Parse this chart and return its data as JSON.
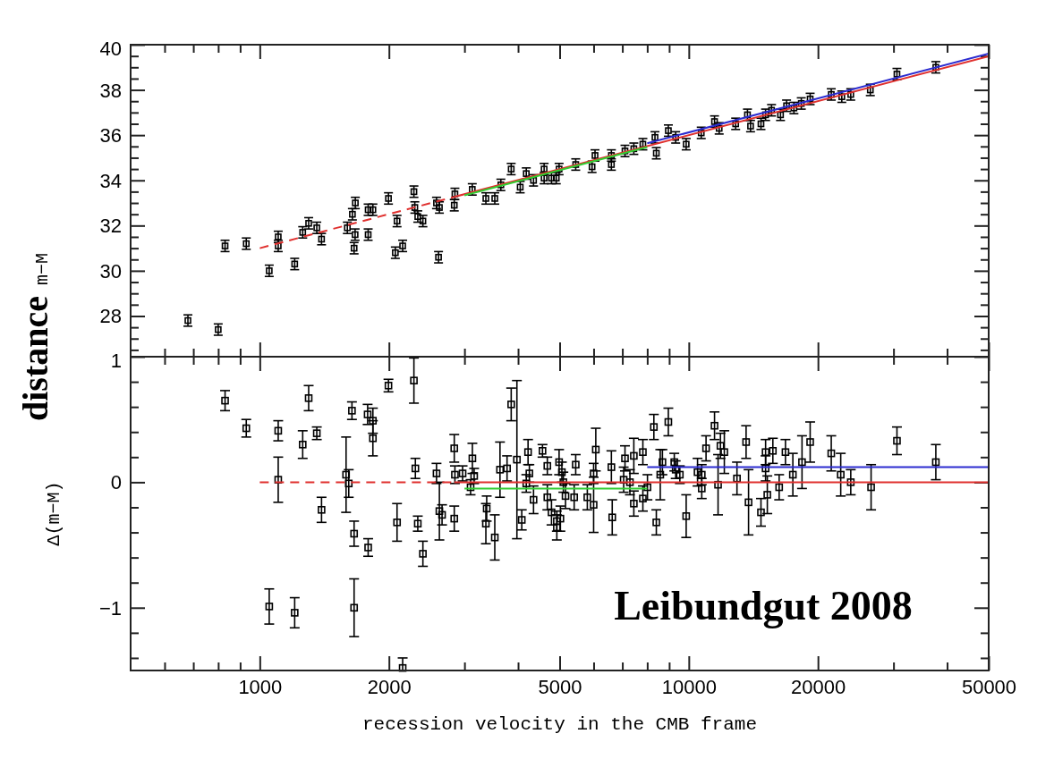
{
  "chart_data": [
    {
      "type": "scatter",
      "ylabel": "distance m−M",
      "xlim": [
        500,
        50000
      ],
      "ylim": [
        26.2,
        40
      ],
      "log": "x",
      "tick_labels": "y",
      "xticks": [
        {
          "value": 600,
          "label": null
        },
        {
          "value": 700,
          "label": null
        },
        {
          "value": 800,
          "label": null
        },
        {
          "value": 900,
          "label": null
        },
        1000,
        2000,
        {
          "value": 3000,
          "label": null
        },
        {
          "value": 4000,
          "label": null
        },
        5000,
        {
          "value": 6000,
          "label": null
        },
        {
          "value": 7000,
          "label": null
        },
        {
          "value": 8000,
          "label": null
        },
        {
          "value": 9000,
          "label": null
        },
        10000,
        20000,
        {
          "value": 30000,
          "label": null
        },
        {
          "value": 40000,
          "label": null
        },
        50000
      ],
      "yticks": [
        {
          "value": 26.5,
          "label": null
        },
        {
          "value": 27,
          "label": null
        },
        {
          "value": 27.5,
          "label": null
        },
        28,
        {
          "value": 28.5,
          "label": null
        },
        {
          "value": 29,
          "label": null
        },
        {
          "value": 29.5,
          "label": null
        },
        30,
        {
          "value": 30.5,
          "label": null
        },
        {
          "value": 31,
          "label": null
        },
        {
          "value": 31.5,
          "label": null
        },
        32,
        {
          "value": 32.5,
          "label": null
        },
        {
          "value": 33,
          "label": null
        },
        {
          "value": 33.5,
          "label": null
        },
        34,
        {
          "value": 34.5,
          "label": null
        },
        {
          "value": 35,
          "label": null
        },
        {
          "value": 35.5,
          "label": null
        },
        36,
        {
          "value": 36.5,
          "label": null
        },
        {
          "value": 37,
          "label": null
        },
        {
          "value": 37.5,
          "label": null
        },
        38,
        {
          "value": 38.5,
          "label": null
        },
        {
          "value": 39,
          "label": null
        },
        {
          "value": 39.5,
          "label": null
        },
        40
      ],
      "series": [
        {
          "color": "#000000",
          "marker": "square",
          "x": [
            680,
            800,
            830,
            930,
            1052,
            1104,
            1104,
            1206,
            1259,
            1300,
            1358,
            1393,
            1600,
            1644,
            1668,
            1659,
            1670,
            1789,
            1789,
            1835,
            1995,
            2089,
            2070,
            2153,
            2287,
            2298,
            2335,
            2400,
            2582,
            2622,
            2610,
            2840,
            2850,
            3128,
            3365,
            3530,
            3647,
            3855,
            4046,
            4180,
            4346,
            4600,
            4786,
            4600,
            4910,
            4985,
            5450,
            5950,
            6045,
            6600,
            6600,
            7100,
            7445,
            7815,
            8400,
            8340,
            8960,
            9320,
            9860,
            10690,
            11480,
            11770,
            12860,
            13700,
            13930,
            14730,
            15100,
            15590,
            16360,
            16900,
            17580,
            18290,
            19180,
            21480,
            22730,
            23850,
            26490,
            30560,
            37650
          ],
          "values": [
            27.8,
            27.4,
            31.1,
            31.2,
            30.0,
            31.5,
            31.1,
            30.3,
            31.7,
            32.1,
            31.9,
            31.4,
            31.9,
            32.5,
            31.6,
            31.0,
            33.0,
            31.6,
            32.7,
            32.7,
            33.2,
            32.2,
            30.8,
            31.1,
            33.5,
            32.8,
            32.4,
            32.2,
            33.0,
            32.8,
            30.6,
            32.9,
            33.4,
            33.6,
            33.2,
            33.2,
            33.8,
            34.5,
            33.7,
            34.3,
            34.0,
            34.5,
            34.1,
            34.1,
            34.1,
            34.5,
            34.7,
            34.6,
            35.1,
            34.7,
            35.1,
            35.3,
            35.4,
            35.6,
            35.2,
            35.9,
            36.2,
            35.9,
            35.6,
            36.1,
            36.6,
            36.3,
            36.5,
            36.9,
            36.4,
            36.5,
            36.9,
            37.1,
            36.9,
            37.3,
            37.2,
            37.4,
            37.6,
            37.8,
            37.7,
            37.8,
            38.0,
            38.7,
            39.0
          ],
          "errors": [
            0.25,
            0.25,
            0.25,
            0.25,
            0.25,
            0.25,
            0.25,
            0.25,
            0.25,
            0.25,
            0.25,
            0.25,
            0.25,
            0.25,
            0.25,
            0.25,
            0.25,
            0.25,
            0.25,
            0.25,
            0.25,
            0.25,
            0.25,
            0.25,
            0.25,
            0.25,
            0.25,
            0.25,
            0.25,
            0.25,
            0.25,
            0.25,
            0.25,
            0.25,
            0.25,
            0.25,
            0.25,
            0.25,
            0.25,
            0.25,
            0.25,
            0.25,
            0.25,
            0.25,
            0.25,
            0.25,
            0.25,
            0.25,
            0.25,
            0.25,
            0.25,
            0.25,
            0.25,
            0.25,
            0.25,
            0.25,
            0.25,
            0.25,
            0.25,
            0.25,
            0.25,
            0.25,
            0.25,
            0.25,
            0.25,
            0.25,
            0.25,
            0.25,
            0.25,
            0.25,
            0.25,
            0.25,
            0.25,
            0.25,
            0.25,
            0.25,
            0.25,
            0.25,
            0.25
          ]
        },
        {
          "type": "line",
          "color": "#e0302e",
          "line_style": "dashed",
          "marker": "none",
          "x": [
            1000,
            2840
          ],
          "values": [
            31.0,
            33.27
          ]
        },
        {
          "type": "line",
          "color": "#e0302e",
          "line_style": "solid",
          "marker": "none",
          "x": [
            2840,
            50000
          ],
          "values": [
            33.27,
            39.49
          ]
        },
        {
          "type": "line",
          "color": "#33cc33",
          "line_style": "solid",
          "marker": "none",
          "x": [
            3000,
            8000
          ],
          "values": [
            33.34,
            35.47
          ]
        },
        {
          "type": "line",
          "color": "#2b2bd0",
          "line_style": "solid",
          "marker": "none",
          "x": [
            8000,
            50000
          ],
          "values": [
            35.64,
            39.61
          ]
        }
      ]
    },
    {
      "type": "scatter",
      "ylabel": "Δ(m−M)",
      "xlabel": "recession velocity in the CMB frame",
      "xlim": [
        500,
        50000
      ],
      "ylim": [
        -1.5,
        1
      ],
      "log": "x",
      "annotations": [
        "Leibundgut 2008"
      ],
      "xticks": [
        {
          "value": 600,
          "label": null
        },
        {
          "value": 700,
          "label": null
        },
        {
          "value": 800,
          "label": null
        },
        {
          "value": 900,
          "label": null
        },
        1000,
        2000,
        {
          "value": 3000,
          "label": null
        },
        {
          "value": 4000,
          "label": null
        },
        5000,
        {
          "value": 6000,
          "label": null
        },
        {
          "value": 7000,
          "label": null
        },
        {
          "value": 8000,
          "label": null
        },
        {
          "value": 9000,
          "label": null
        },
        10000,
        20000,
        {
          "value": 30000,
          "label": null
        },
        {
          "value": 40000,
          "label": null
        },
        50000
      ],
      "yticks": [
        {
          "value": -1.4,
          "label": null
        },
        {
          "value": -1.2,
          "label": null
        },
        {
          "value": -1,
          "label": "−1"
        },
        {
          "value": -0.8,
          "label": null
        },
        {
          "value": -0.6,
          "label": null
        },
        {
          "value": -0.4,
          "label": null
        },
        {
          "value": -0.2,
          "label": null
        },
        0,
        {
          "value": 0.2,
          "label": null
        },
        {
          "value": 0.4,
          "label": null
        },
        {
          "value": 0.6,
          "label": null
        },
        {
          "value": 0.8,
          "label": null
        },
        1
      ],
      "series": [
        {
          "color": "#000000",
          "marker": "square",
          "x": [
            830,
            930,
            1052,
            1104,
            1104,
            1206,
            1259,
            1300,
            1358,
            1393,
            1589,
            1612,
            1659,
            1659,
            1640,
            1789,
            1784,
            1835,
            1835,
            1995,
            2089,
            2153,
            2287,
            2305,
            2335,
            2400,
            2582,
            2622,
            2660,
            2840,
            2840,
            2850,
            2970,
            3100,
            3130,
            3160,
            3365,
            3380,
            3530,
            3630,
            3770,
            3855,
            3975,
            4080,
            4220,
            4250,
            4180,
            4346,
            4560,
            4680,
            4680,
            4786,
            4925,
            4925,
            4985,
            5020,
            5060,
            5100,
            5160,
            5405,
            5450,
            5800,
            6000,
            6000,
            6070,
            6600,
            6630,
            7100,
            7050,
            7290,
            7445,
            7445,
            7815,
            7815,
            8010,
            8290,
            8400,
            8580,
            8680,
            8960,
            9250,
            9320,
            9530,
            9860,
            10480,
            10720,
            10720,
            10970,
            11480,
            11700,
            11850,
            12100,
            12950,
            13600,
            13780,
            14730,
            15100,
            15240,
            15100,
            15700,
            16240,
            16800,
            17480,
            18360,
            19180,
            21480,
            22600,
            23850,
            26600,
            30560,
            37650
          ],
          "values": [
            0.65,
            0.43,
            -0.99,
            0.41,
            0.02,
            -1.04,
            0.3,
            0.67,
            0.39,
            -0.22,
            0.06,
            -0.01,
            -1.0,
            -0.41,
            0.57,
            -0.52,
            0.54,
            0.49,
            0.35,
            0.77,
            -0.32,
            -1.48,
            0.81,
            0.11,
            -0.33,
            -0.57,
            0.07,
            -0.23,
            -0.26,
            0.27,
            -0.29,
            0.06,
            0.07,
            -0.04,
            0.19,
            0.05,
            -0.33,
            -0.21,
            -0.44,
            0.1,
            0.11,
            0.62,
            0.18,
            -0.3,
            0.24,
            0.07,
            -0.01,
            -0.14,
            0.25,
            0.13,
            -0.12,
            -0.24,
            -0.36,
            -0.31,
            0.16,
            -0.29,
            0.08,
            0.0,
            -0.11,
            -0.12,
            0.14,
            -0.12,
            0.07,
            -0.18,
            0.26,
            0.12,
            -0.28,
            0.19,
            0.02,
            0.0,
            -0.17,
            0.21,
            0.24,
            -0.13,
            -0.04,
            0.44,
            -0.32,
            0.06,
            0.16,
            0.48,
            0.16,
            0.1,
            0.06,
            -0.27,
            0.08,
            0.06,
            -0.05,
            0.27,
            0.45,
            -0.02,
            0.29,
            0.24,
            0.03,
            0.32,
            -0.16,
            -0.24,
            0.24,
            -0.1,
            0.11,
            0.25,
            -0.04,
            0.24,
            0.06,
            0.16,
            0.32,
            0.23,
            0.06,
            0.0,
            -0.04,
            0.33,
            0.16
          ],
          "errors": [
            0.08,
            0.07,
            0.14,
            0.08,
            0.18,
            0.12,
            0.11,
            0.1,
            0.05,
            0.1,
            0.3,
            0.11,
            0.23,
            0.1,
            0.07,
            0.07,
            0.08,
            0.1,
            0.14,
            0.05,
            0.15,
            [
              -1.5,
              -1.4
            ],
            0.18,
            0.08,
            0.06,
            0.1,
            0.08,
            0.23,
            0.08,
            0.11,
            0.1,
            0.07,
            0.06,
            0.06,
            0.12,
            0.06,
            0.16,
            0.1,
            0.18,
            0.22,
            0.1,
            0.13,
            0.63,
            0.08,
            0.1,
            0.07,
            0.07,
            0.11,
            0.05,
            0.07,
            0.1,
            0.1,
            0.1,
            0.08,
            0.1,
            0.1,
            0.08,
            0.08,
            0.1,
            0.1,
            0.08,
            0.1,
            0.08,
            0.22,
            0.17,
            0.13,
            0.14,
            0.1,
            0.1,
            0.1,
            0.1,
            0.14,
            0.1,
            0.1,
            0.1,
            0.1,
            0.1,
            0.2,
            0.1,
            0.11,
            0.07,
            0.07,
            0.07,
            0.17,
            0.11,
            0.08,
            0.08,
            0.1,
            0.11,
            0.24,
            0.1,
            0.17,
            0.13,
            0.13,
            0.26,
            0.11,
            0.1,
            0.15,
            0.1,
            0.1,
            0.1,
            0.1,
            0.17,
            0.21,
            0.16,
            0.14,
            0.17,
            0.1,
            0.18,
            0.11,
            0.14
          ]
        },
        {
          "type": "line",
          "color": "#e0302e",
          "line_style": "dashed",
          "marker": "none",
          "x": [
            1000,
            2840
          ],
          "values": [
            0,
            0
          ]
        },
        {
          "type": "line",
          "color": "#e0302e",
          "line_style": "solid",
          "marker": "none",
          "x": [
            2840,
            50000
          ],
          "values": [
            0,
            0
          ]
        },
        {
          "type": "line",
          "color": "#33cc33",
          "line_style": "solid",
          "marker": "none",
          "x": [
            3000,
            8000
          ],
          "values": [
            -0.05,
            -0.05
          ]
        },
        {
          "type": "line",
          "color": "#2b2bd0",
          "line_style": "solid",
          "marker": "none",
          "x": [
            8000,
            50000
          ],
          "values": [
            0.12,
            0.12
          ]
        }
      ]
    }
  ]
}
